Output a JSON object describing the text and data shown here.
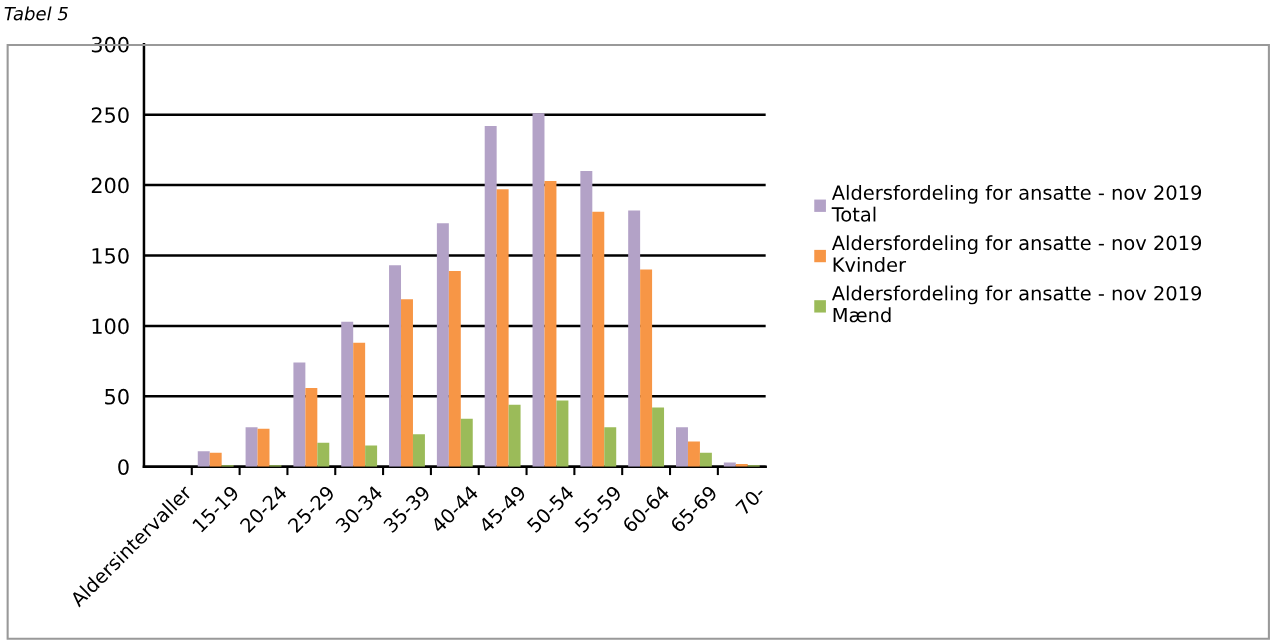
{
  "chart_data": {
    "type": "bar",
    "title": "Tabel 5",
    "categories": [
      "Aldersintervaller",
      "15-19",
      "20-24",
      "25-29",
      "30-34",
      "35-39",
      "40-44",
      "45-49",
      "50-54",
      "55-59",
      "60-64",
      "65-69",
      "70-"
    ],
    "series": [
      {
        "name": "Aldersfordeling for ansatte - nov 2019\nTotal",
        "color": "#b3a2c7",
        "values": [
          null,
          11,
          28,
          74,
          103,
          143,
          173,
          242,
          251,
          210,
          182,
          28,
          3
        ]
      },
      {
        "name": "Aldersfordeling for ansatte - nov 2019\nKvinder",
        "color": "#f79646",
        "values": [
          null,
          10,
          27,
          56,
          88,
          119,
          139,
          197,
          203,
          181,
          140,
          18,
          2
        ]
      },
      {
        "name": "Aldersfordeling for ansatte - nov 2019\nMænd",
        "color": "#9bbb59",
        "values": [
          null,
          1,
          1,
          17,
          15,
          23,
          34,
          44,
          47,
          28,
          42,
          10,
          1
        ]
      }
    ],
    "ylim": [
      0,
      300
    ],
    "yticks": [
      0,
      50,
      100,
      150,
      200,
      250,
      300
    ],
    "grid": "y",
    "legend": "right"
  }
}
